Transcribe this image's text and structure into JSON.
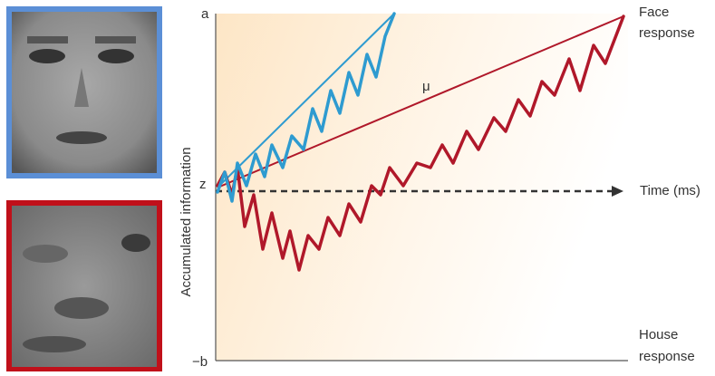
{
  "axis": {
    "top_label": "a",
    "start_label": "z",
    "bottom_label": "−b",
    "y_title": "Accumulated information",
    "x_title": "Time (ms)"
  },
  "drift_label": "μ",
  "face_response": [
    "Face",
    "response"
  ],
  "house_response": [
    "House",
    "response"
  ]
}
